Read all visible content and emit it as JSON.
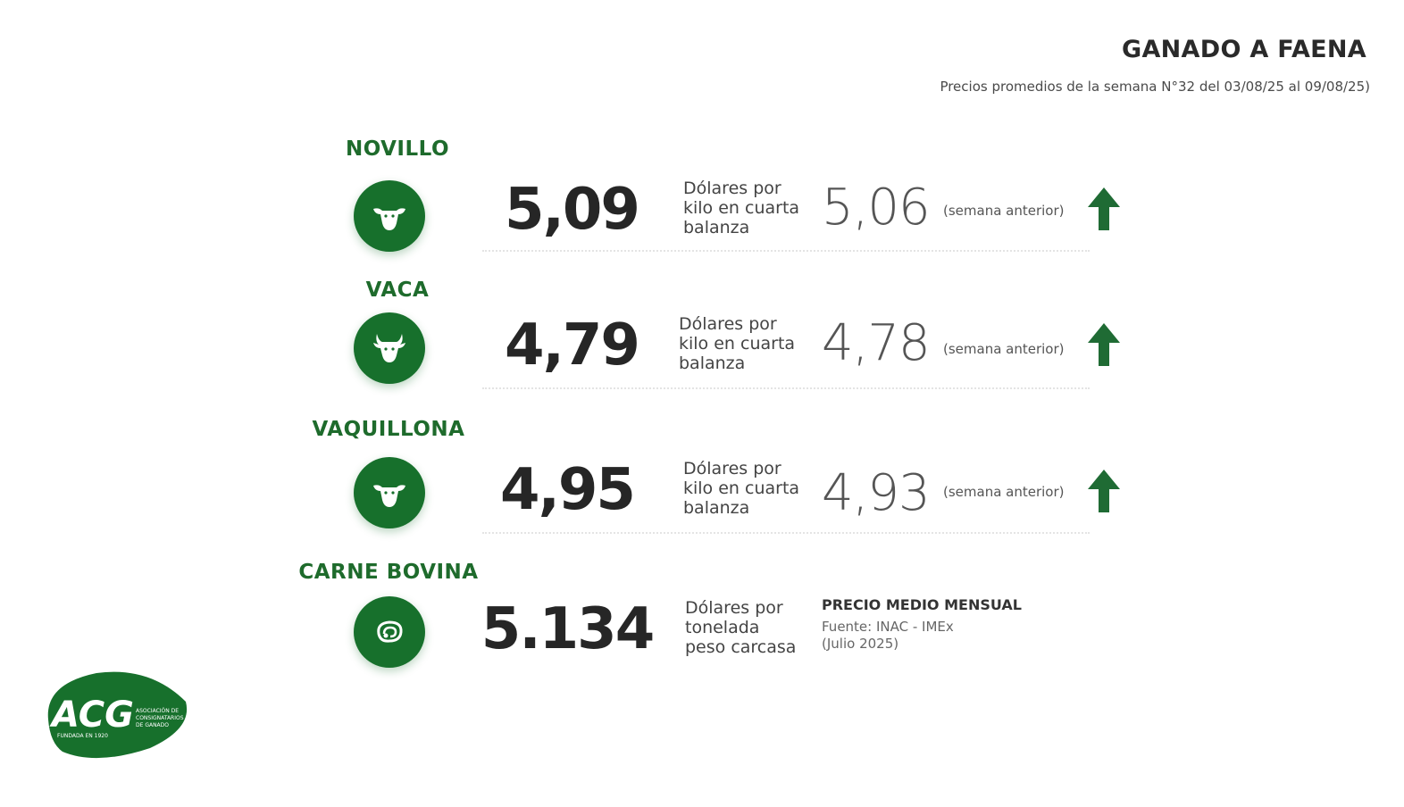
{
  "header": {
    "title": "GANADO A FAENA",
    "subtitle": "Precios promedios de la semana N°32 del 03/08/25 al 09/08/25)"
  },
  "items": [
    {
      "label": "NOVILLO",
      "icon": "cow-head-icon",
      "value": "5,09",
      "unit_lines": [
        "Dólares por",
        "kilo en cuarta",
        "balanza"
      ],
      "previous_value": "5,06",
      "previous_label": "(semana anterior)",
      "trend": "up"
    },
    {
      "label": "VACA",
      "icon": "cow-horns-icon",
      "value": "4,79",
      "unit_lines": [
        "Dólares por",
        "kilo en cuarta",
        "balanza"
      ],
      "previous_value": "4,78",
      "previous_label": "(semana anterior)",
      "trend": "up"
    },
    {
      "label": "VAQUILLONA",
      "icon": "heifer-head-icon",
      "value": "4,95",
      "unit_lines": [
        "Dólares por",
        "kilo en cuarta",
        "balanza"
      ],
      "previous_value": "4,93",
      "previous_label": "(semana anterior)",
      "trend": "up"
    },
    {
      "label": "CARNE BOVINA",
      "icon": "steak-icon",
      "value": "5.134",
      "unit_lines": [
        "Dólares por",
        "tonelada",
        "peso carcasa"
      ],
      "monthly_title": "PRECIO MEDIO MENSUAL",
      "source_lines": [
        "Fuente: INAC - IMEx",
        "(Julio 2025)"
      ]
    }
  ],
  "logo": {
    "text": "ACG",
    "subtext_lines": [
      "ASOCIACIÓN DE",
      "CONSIGNATARIOS",
      "DE GANADO"
    ],
    "founded": "FUNDADA EN 1920"
  },
  "colors": {
    "brand_green": "#17702c",
    "label_green": "#1e6b2c",
    "arrow_green": "#1f6b34"
  }
}
